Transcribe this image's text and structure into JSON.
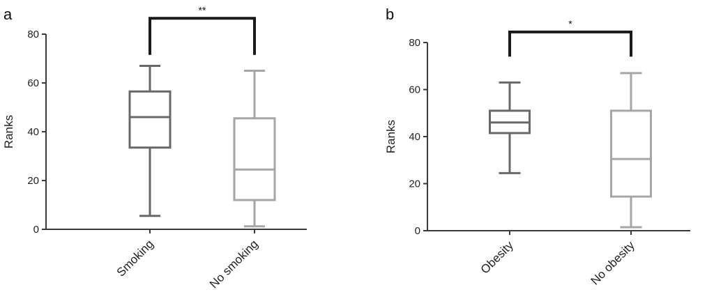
{
  "chart_data": [
    {
      "panel_label": "a",
      "type": "box",
      "ylabel": "Ranks",
      "ylim": [
        0,
        80
      ],
      "yticks": [
        0,
        20,
        40,
        60,
        80
      ],
      "categories": [
        "Smoking",
        "No smoking"
      ],
      "boxes": [
        {
          "category": "Smoking",
          "min": 5.5,
          "q1": 33.5,
          "median": 46,
          "q3": 56.5,
          "max": 67,
          "color": "#686868"
        },
        {
          "category": "No smoking",
          "min": 1.2,
          "q1": 12,
          "median": 24.5,
          "q3": 45.5,
          "max": 65,
          "color": "#a6a6a6"
        }
      ],
      "significance": {
        "label": "**",
        "from": "Smoking",
        "to": "No smoking",
        "y": 86.5,
        "drop_to": 71.5
      },
      "axis_color": "#3a3a3a",
      "bracket_color": "#1a1a1a"
    },
    {
      "panel_label": "b",
      "type": "box",
      "ylabel": "Ranks",
      "ylim": [
        0,
        80
      ],
      "yticks": [
        0,
        20,
        40,
        60,
        80
      ],
      "categories": [
        "Obesity",
        "No obesity"
      ],
      "boxes": [
        {
          "category": "Obesity",
          "min": 24.5,
          "q1": 41.5,
          "median": 46,
          "q3": 51,
          "max": 63,
          "color": "#686868"
        },
        {
          "category": "No obesity",
          "min": 1.5,
          "q1": 14.5,
          "median": 30.5,
          "q3": 51,
          "max": 67,
          "color": "#a6a6a6"
        }
      ],
      "significance": {
        "label": "*",
        "from": "Obesity",
        "to": "No obesity",
        "y": 84.5,
        "drop_to": 74
      },
      "axis_color": "#3a3a3a",
      "bracket_color": "#1a1a1a"
    }
  ]
}
